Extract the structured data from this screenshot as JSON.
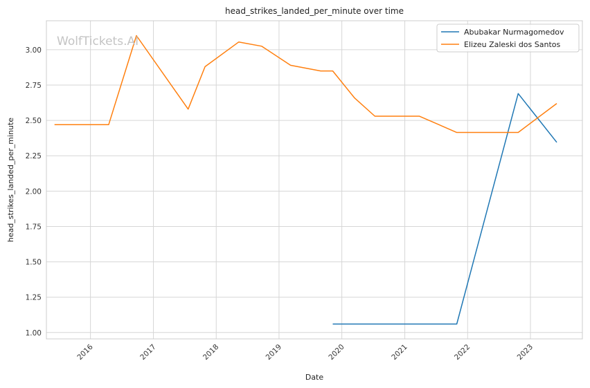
{
  "watermark": "WolfTickets.AI",
  "chart_data": {
    "type": "line",
    "title": "head_strikes_landed_per_minute over time",
    "xlabel": "Date",
    "ylabel": "head_strikes_landed_per_minute",
    "x_ticks": [
      "2016",
      "2017",
      "2018",
      "2019",
      "2020",
      "2021",
      "2022",
      "2023"
    ],
    "y_ticks": [
      "1.00",
      "1.25",
      "1.50",
      "1.75",
      "2.00",
      "2.25",
      "2.50",
      "2.75",
      "3.00"
    ],
    "xlim": [
      "2015-04-20",
      "2023-10-30"
    ],
    "ylim": [
      0.955,
      3.205
    ],
    "grid": true,
    "legend_position": "top-right",
    "series": [
      {
        "name": "Abubakar Nurmagomedov",
        "color": "#1f77b4",
        "points": [
          {
            "x": "2019-11-09",
            "y": 1.06
          },
          {
            "x": "2021-10-30",
            "y": 1.06
          },
          {
            "x": "2022-10-22",
            "y": 2.69
          },
          {
            "x": "2023-06-03",
            "y": 2.345
          }
        ]
      },
      {
        "name": "Elizeu Zaleski dos Santos",
        "color": "#ff7f0e",
        "points": [
          {
            "x": "2015-06-06",
            "y": 2.47
          },
          {
            "x": "2016-04-16",
            "y": 2.47
          },
          {
            "x": "2016-09-24",
            "y": 3.1
          },
          {
            "x": "2017-07-22",
            "y": 2.58
          },
          {
            "x": "2017-10-28",
            "y": 2.88
          },
          {
            "x": "2018-05-12",
            "y": 3.055
          },
          {
            "x": "2018-09-22",
            "y": 3.025
          },
          {
            "x": "2019-03-09",
            "y": 2.89
          },
          {
            "x": "2019-08-31",
            "y": 2.85
          },
          {
            "x": "2019-11-09",
            "y": 2.85
          },
          {
            "x": "2020-03-14",
            "y": 2.66
          },
          {
            "x": "2020-07-11",
            "y": 2.53
          },
          {
            "x": "2021-03-27",
            "y": 2.53
          },
          {
            "x": "2021-10-30",
            "y": 2.415
          },
          {
            "x": "2022-10-22",
            "y": 2.415
          },
          {
            "x": "2023-06-03",
            "y": 2.62
          }
        ]
      }
    ]
  }
}
